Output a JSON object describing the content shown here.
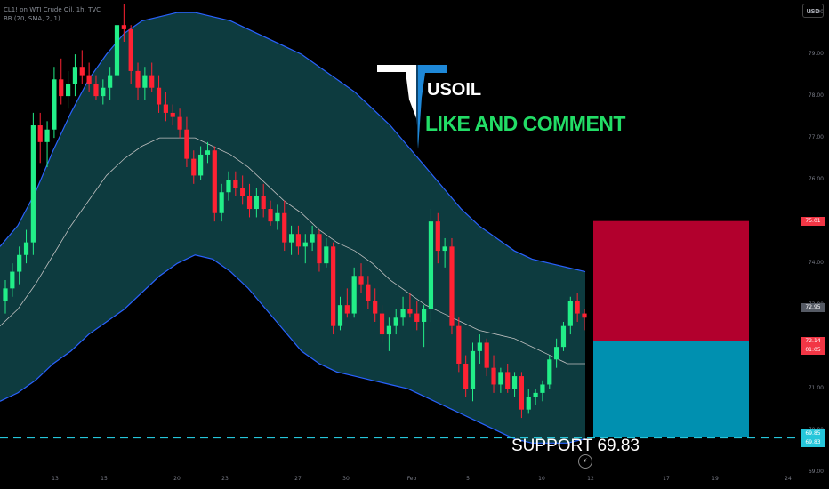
{
  "header": {
    "symbol_line": "CL1! on WTI Crude Oil, 1h, TVC",
    "indicator_line": "BB (20, SMA, 2, 1)"
  },
  "annotations": {
    "title": "USOIL",
    "subtitle": "LIKE AND COMMENT",
    "support_label": "SUPPORT  69.83"
  },
  "price_scale": {
    "currency": "USD",
    "ticks": [
      "80.00",
      "79.00",
      "78.00",
      "77.00",
      "76.00",
      "75.00",
      "74.00",
      "73.00",
      "72.00",
      "71.00",
      "70.00",
      "69.00"
    ],
    "labels": [
      {
        "text": "75.01",
        "color": "#f23645"
      },
      {
        "text": "72.95",
        "color": "#555a64"
      },
      {
        "text": "72.14",
        "color": "#f23645"
      },
      {
        "text": "01:05",
        "color": "#f23645"
      },
      {
        "text": "69.85",
        "color": "#26c6da"
      },
      {
        "text": "69.83",
        "color": "#26c6da"
      }
    ]
  },
  "x_axis": {
    "ticks": [
      "13",
      "15",
      "20",
      "23",
      "27",
      "30",
      "Feb",
      "5",
      "10",
      "12",
      "17",
      "19",
      "24"
    ]
  },
  "colors": {
    "bullish": "#22ee88",
    "bearish": "#ff2233",
    "band_fill": "#0d3b3f",
    "band_line": "#2962ff",
    "basis_line": "#c0c0c0",
    "stop_zone": "#b2002d",
    "target_zone": "#0090b0",
    "support_line": "#26c6da"
  },
  "chart_data": {
    "type": "candlestick",
    "title": "USOIL",
    "price_range": [
      68.6,
      80.3
    ],
    "candles": [
      {
        "o": 73.1,
        "h": 73.6,
        "l": 72.8,
        "c": 73.4
      },
      {
        "o": 73.4,
        "h": 74.0,
        "l": 73.2,
        "c": 73.8
      },
      {
        "o": 73.8,
        "h": 74.4,
        "l": 73.5,
        "c": 74.2
      },
      {
        "o": 74.2,
        "h": 74.8,
        "l": 74.0,
        "c": 74.5
      },
      {
        "o": 74.5,
        "h": 77.6,
        "l": 74.2,
        "c": 77.3
      },
      {
        "o": 77.3,
        "h": 77.6,
        "l": 76.4,
        "c": 76.9
      },
      {
        "o": 76.9,
        "h": 77.4,
        "l": 76.3,
        "c": 77.2
      },
      {
        "o": 77.2,
        "h": 78.7,
        "l": 77.0,
        "c": 78.4
      },
      {
        "o": 78.4,
        "h": 78.9,
        "l": 77.8,
        "c": 78.0
      },
      {
        "o": 78.0,
        "h": 78.6,
        "l": 77.7,
        "c": 78.3
      },
      {
        "o": 78.3,
        "h": 79.0,
        "l": 78.0,
        "c": 78.7
      },
      {
        "o": 78.7,
        "h": 79.1,
        "l": 78.3,
        "c": 78.5
      },
      {
        "o": 78.5,
        "h": 78.8,
        "l": 78.1,
        "c": 78.3
      },
      {
        "o": 78.3,
        "h": 78.5,
        "l": 77.9,
        "c": 78.0
      },
      {
        "o": 78.0,
        "h": 78.4,
        "l": 77.8,
        "c": 78.2
      },
      {
        "o": 78.2,
        "h": 78.7,
        "l": 77.9,
        "c": 78.5
      },
      {
        "o": 78.5,
        "h": 80.0,
        "l": 78.3,
        "c": 79.7
      },
      {
        "o": 79.7,
        "h": 80.2,
        "l": 79.3,
        "c": 79.6
      },
      {
        "o": 79.6,
        "h": 79.7,
        "l": 78.3,
        "c": 78.6
      },
      {
        "o": 78.6,
        "h": 78.8,
        "l": 77.9,
        "c": 78.2
      },
      {
        "o": 78.2,
        "h": 78.7,
        "l": 77.9,
        "c": 78.5
      },
      {
        "o": 78.5,
        "h": 78.8,
        "l": 78.1,
        "c": 78.2
      },
      {
        "o": 78.2,
        "h": 78.5,
        "l": 77.6,
        "c": 77.8
      },
      {
        "o": 77.8,
        "h": 78.1,
        "l": 77.4,
        "c": 77.6
      },
      {
        "o": 77.6,
        "h": 77.8,
        "l": 77.3,
        "c": 77.5
      },
      {
        "o": 77.5,
        "h": 77.7,
        "l": 77.0,
        "c": 77.2
      },
      {
        "o": 77.2,
        "h": 77.5,
        "l": 76.3,
        "c": 76.5
      },
      {
        "o": 76.5,
        "h": 76.7,
        "l": 75.9,
        "c": 76.1
      },
      {
        "o": 76.1,
        "h": 76.8,
        "l": 76.0,
        "c": 76.6
      },
      {
        "o": 76.6,
        "h": 76.9,
        "l": 76.4,
        "c": 76.7
      },
      {
        "o": 76.7,
        "h": 76.8,
        "l": 75.0,
        "c": 75.2
      },
      {
        "o": 75.2,
        "h": 75.9,
        "l": 75.0,
        "c": 75.7
      },
      {
        "o": 75.7,
        "h": 76.2,
        "l": 75.5,
        "c": 76.0
      },
      {
        "o": 76.0,
        "h": 76.2,
        "l": 75.6,
        "c": 75.8
      },
      {
        "o": 75.8,
        "h": 76.1,
        "l": 75.4,
        "c": 75.6
      },
      {
        "o": 75.6,
        "h": 75.9,
        "l": 75.1,
        "c": 75.3
      },
      {
        "o": 75.3,
        "h": 75.8,
        "l": 75.1,
        "c": 75.6
      },
      {
        "o": 75.6,
        "h": 75.9,
        "l": 75.1,
        "c": 75.3
      },
      {
        "o": 75.3,
        "h": 75.5,
        "l": 74.9,
        "c": 75.0
      },
      {
        "o": 75.0,
        "h": 75.4,
        "l": 74.8,
        "c": 75.2
      },
      {
        "o": 75.2,
        "h": 75.5,
        "l": 74.3,
        "c": 74.5
      },
      {
        "o": 74.5,
        "h": 74.9,
        "l": 74.2,
        "c": 74.7
      },
      {
        "o": 74.7,
        "h": 74.9,
        "l": 74.2,
        "c": 74.4
      },
      {
        "o": 74.4,
        "h": 74.7,
        "l": 74.0,
        "c": 74.5
      },
      {
        "o": 74.5,
        "h": 74.9,
        "l": 74.3,
        "c": 74.7
      },
      {
        "o": 74.7,
        "h": 74.8,
        "l": 73.8,
        "c": 74.0
      },
      {
        "o": 74.0,
        "h": 74.6,
        "l": 73.9,
        "c": 74.4
      },
      {
        "o": 74.4,
        "h": 74.5,
        "l": 72.3,
        "c": 72.5
      },
      {
        "o": 72.5,
        "h": 73.2,
        "l": 72.4,
        "c": 73.0
      },
      {
        "o": 73.0,
        "h": 73.4,
        "l": 72.7,
        "c": 72.8
      },
      {
        "o": 72.8,
        "h": 73.9,
        "l": 72.7,
        "c": 73.7
      },
      {
        "o": 73.7,
        "h": 74.0,
        "l": 73.3,
        "c": 73.5
      },
      {
        "o": 73.5,
        "h": 73.7,
        "l": 72.9,
        "c": 73.1
      },
      {
        "o": 73.1,
        "h": 73.4,
        "l": 72.6,
        "c": 72.8
      },
      {
        "o": 72.8,
        "h": 73.0,
        "l": 72.1,
        "c": 72.3
      },
      {
        "o": 72.3,
        "h": 72.7,
        "l": 71.9,
        "c": 72.5
      },
      {
        "o": 72.5,
        "h": 72.9,
        "l": 72.3,
        "c": 72.7
      },
      {
        "o": 72.7,
        "h": 73.2,
        "l": 72.5,
        "c": 72.9
      },
      {
        "o": 72.9,
        "h": 73.3,
        "l": 72.7,
        "c": 72.8
      },
      {
        "o": 72.8,
        "h": 73.1,
        "l": 72.4,
        "c": 72.6
      },
      {
        "o": 72.6,
        "h": 73.0,
        "l": 72.0,
        "c": 72.9
      },
      {
        "o": 72.9,
        "h": 75.3,
        "l": 72.6,
        "c": 75.0
      },
      {
        "o": 75.0,
        "h": 75.2,
        "l": 74.0,
        "c": 74.3
      },
      {
        "o": 74.3,
        "h": 74.6,
        "l": 73.9,
        "c": 74.4
      },
      {
        "o": 74.4,
        "h": 74.6,
        "l": 72.3,
        "c": 72.5
      },
      {
        "o": 72.5,
        "h": 72.7,
        "l": 71.4,
        "c": 71.6
      },
      {
        "o": 71.6,
        "h": 71.8,
        "l": 70.8,
        "c": 71.0
      },
      {
        "o": 71.0,
        "h": 72.1,
        "l": 70.7,
        "c": 71.9
      },
      {
        "o": 71.9,
        "h": 72.3,
        "l": 71.6,
        "c": 72.1
      },
      {
        "o": 72.1,
        "h": 72.2,
        "l": 71.3,
        "c": 71.5
      },
      {
        "o": 71.5,
        "h": 71.8,
        "l": 70.9,
        "c": 71.1
      },
      {
        "o": 71.1,
        "h": 71.5,
        "l": 70.9,
        "c": 71.4
      },
      {
        "o": 71.4,
        "h": 71.6,
        "l": 70.9,
        "c": 71.0
      },
      {
        "o": 71.0,
        "h": 71.4,
        "l": 70.8,
        "c": 71.3
      },
      {
        "o": 71.3,
        "h": 71.4,
        "l": 70.3,
        "c": 70.5
      },
      {
        "o": 70.5,
        "h": 71.0,
        "l": 70.4,
        "c": 70.8
      },
      {
        "o": 70.8,
        "h": 71.0,
        "l": 70.6,
        "c": 70.9
      },
      {
        "o": 70.9,
        "h": 71.2,
        "l": 70.7,
        "c": 71.1
      },
      {
        "o": 71.1,
        "h": 71.8,
        "l": 71.0,
        "c": 71.7
      },
      {
        "o": 71.7,
        "h": 72.2,
        "l": 71.5,
        "c": 72.0
      },
      {
        "o": 72.0,
        "h": 72.6,
        "l": 71.9,
        "c": 72.5
      },
      {
        "o": 72.5,
        "h": 73.2,
        "l": 72.3,
        "c": 73.1
      },
      {
        "o": 73.1,
        "h": 73.3,
        "l": 72.6,
        "c": 72.8
      },
      {
        "o": 72.8,
        "h": 72.9,
        "l": 72.4,
        "c": 72.7
      }
    ],
    "bollinger": {
      "upper": [
        74.4,
        74.9,
        75.7,
        76.7,
        77.6,
        78.4,
        79.0,
        79.5,
        79.8,
        79.9,
        80.0,
        80.0,
        79.9,
        79.8,
        79.6,
        79.4,
        79.2,
        79.0,
        78.7,
        78.4,
        78.1,
        77.7,
        77.3,
        76.8,
        76.3,
        75.8,
        75.3,
        74.9,
        74.6,
        74.3,
        74.1,
        74.0,
        73.9,
        73.8
      ],
      "lower": [
        70.7,
        70.9,
        71.2,
        71.6,
        71.9,
        72.3,
        72.6,
        72.9,
        73.3,
        73.7,
        74.0,
        74.2,
        74.1,
        73.8,
        73.4,
        72.9,
        72.4,
        71.9,
        71.6,
        71.4,
        71.3,
        71.2,
        71.1,
        71.0,
        70.8,
        70.6,
        70.4,
        70.2,
        70.0,
        69.8,
        69.7,
        69.7,
        69.7,
        69.8
      ],
      "basis": [
        72.5,
        72.9,
        73.5,
        74.2,
        74.9,
        75.5,
        76.1,
        76.5,
        76.8,
        77.0,
        77.0,
        77.0,
        76.8,
        76.6,
        76.3,
        75.9,
        75.5,
        75.2,
        74.8,
        74.5,
        74.3,
        74.0,
        73.6,
        73.3,
        73.0,
        72.8,
        72.6,
        72.4,
        72.3,
        72.2,
        72.0,
        71.8,
        71.6,
        71.6
      ]
    },
    "trade_setup": {
      "stop": 75.01,
      "entry": 72.14,
      "target": 69.85
    },
    "support": 69.83
  }
}
